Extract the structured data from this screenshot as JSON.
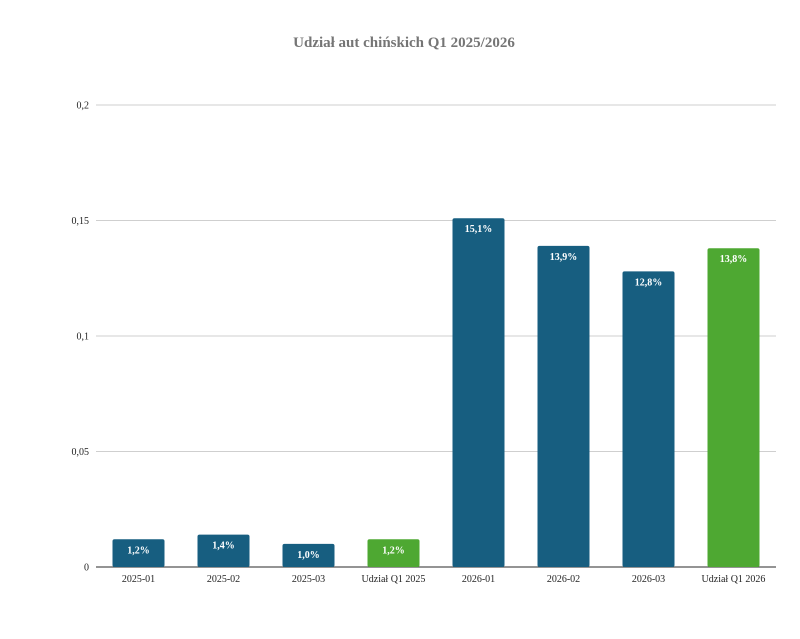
{
  "chart_data": {
    "type": "bar",
    "title": "Udział aut chińskich Q1 2025/2026",
    "xlabel": "",
    "ylabel": "",
    "categories": [
      "2025-01",
      "2025-02",
      "2025-03",
      "Udział Q1 2025",
      "2026-01",
      "2026-02",
      "2026-03",
      "Udział Q1 2026"
    ],
    "values": [
      0.012,
      0.014,
      0.01,
      0.012,
      0.151,
      0.139,
      0.128,
      0.138
    ],
    "data_labels": [
      "1,2%",
      "1,4%",
      "1,0%",
      "1,2%",
      "15,1%",
      "13,9%",
      "12,8%",
      "13,8%"
    ],
    "bar_colors": [
      "#175e80",
      "#175e80",
      "#175e80",
      "#4ea832",
      "#175e80",
      "#175e80",
      "#175e80",
      "#4ea832"
    ],
    "ylim": [
      0,
      0.2
    ],
    "yticks": [
      0,
      0.05,
      0.1,
      0.15,
      0.2
    ],
    "ytick_labels": [
      "0",
      "0,05",
      "0,1",
      "0,15",
      "0,2"
    ],
    "grid": true,
    "legend": "none"
  }
}
